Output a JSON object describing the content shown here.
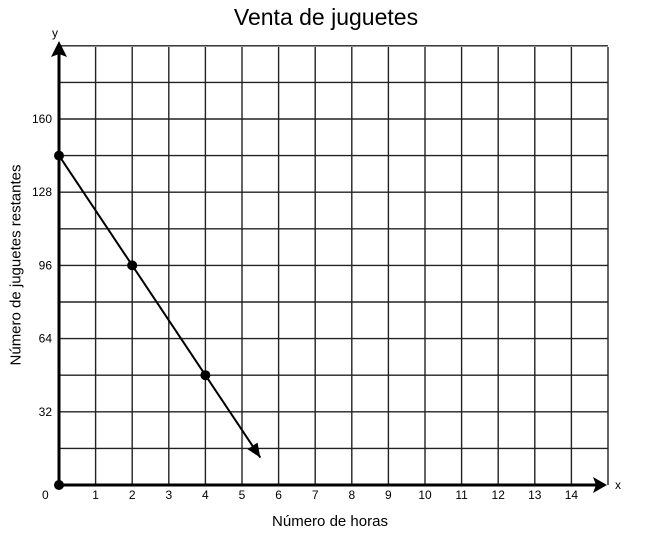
{
  "chart_data": {
    "type": "line",
    "title": "Venta de juguetes",
    "xlabel": "Número de horas",
    "ylabel": "Número de juguetes restantes",
    "x_axis_letter": "x",
    "y_axis_letter": "y",
    "origin_label": "0",
    "xlim": [
      0,
      15
    ],
    "ylim": [
      0,
      192
    ],
    "x_ticks": [
      1,
      2,
      3,
      4,
      5,
      6,
      7,
      8,
      9,
      10,
      11,
      12,
      13,
      14
    ],
    "y_ticks": [
      32,
      64,
      96,
      128,
      160
    ],
    "grid": true,
    "x_grid_step": 1,
    "y_grid_step": 16,
    "series": [
      {
        "points": [
          {
            "x": 0,
            "y": 144
          },
          {
            "x": 2,
            "y": 96
          },
          {
            "x": 4,
            "y": 48
          }
        ],
        "line_end": {
          "x": 5.5,
          "y": 12
        },
        "arrow_at_end": true,
        "color": "#000000"
      }
    ],
    "origin_point": {
      "x": 0,
      "y": 0
    }
  }
}
